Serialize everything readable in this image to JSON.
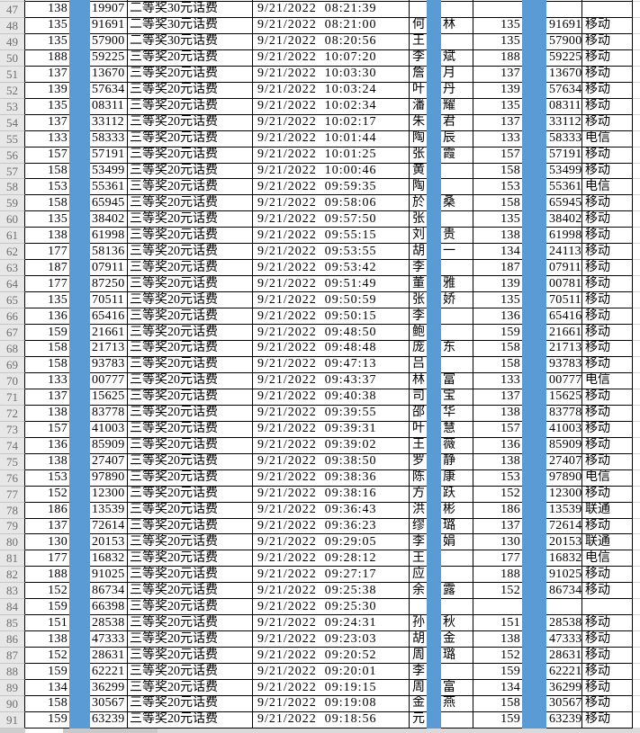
{
  "sheet": {
    "visible_row_range": "47-91",
    "redaction_color": "#5b9bd5",
    "carriers_seen": [
      "移动",
      "电信",
      "联通"
    ],
    "prize_tiers_seen": [
      "二等奖30元话费",
      "三等奖20元话费"
    ]
  },
  "rows": [
    {
      "n": "47",
      "p1": "138",
      "s1": "19907",
      "prize": "二等奖30元话费",
      "dt": "9/21/2022  08:21:39",
      "f": "",
      "l": "",
      "p2": "",
      "s2": "",
      "op": ""
    },
    {
      "n": "48",
      "p1": "135",
      "s1": "91691",
      "prize": "二等奖30元话费",
      "dt": "9/21/2022  08:21:00",
      "f": "何",
      "l": "林",
      "p2": "135",
      "s2": "91691",
      "op": "移动"
    },
    {
      "n": "49",
      "p1": "135",
      "s1": "57900",
      "prize": "二等奖30元话费",
      "dt": "9/21/2022  08:20:56",
      "f": "王",
      "l": "",
      "p2": "135",
      "s2": "57900",
      "op": "移动"
    },
    {
      "n": "50",
      "p1": "188",
      "s1": "59225",
      "prize": "三等奖20元话费",
      "dt": "9/21/2022  10:07:20",
      "f": "李",
      "l": "斌",
      "p2": "188",
      "s2": "59225",
      "op": "移动"
    },
    {
      "n": "51",
      "p1": "137",
      "s1": "13670",
      "prize": "三等奖20元话费",
      "dt": "9/21/2022  10:03:30",
      "f": "詹",
      "l": "月",
      "p2": "137",
      "s2": "13670",
      "op": "移动"
    },
    {
      "n": "52",
      "p1": "139",
      "s1": "57634",
      "prize": "三等奖20元话费",
      "dt": "9/21/2022  10:03:24",
      "f": "叶",
      "l": "丹",
      "p2": "139",
      "s2": "57634",
      "op": "移动"
    },
    {
      "n": "53",
      "p1": "135",
      "s1": "08311",
      "prize": "三等奖20元话费",
      "dt": "9/21/2022  10:02:34",
      "f": "潘",
      "l": "耀",
      "p2": "135",
      "s2": "08311",
      "op": "移动"
    },
    {
      "n": "54",
      "p1": "137",
      "s1": "33112",
      "prize": "三等奖20元话费",
      "dt": "9/21/2022  10:02:17",
      "f": "朱",
      "l": "君",
      "p2": "137",
      "s2": "33112",
      "op": "移动"
    },
    {
      "n": "55",
      "p1": "133",
      "s1": "58333",
      "prize": "三等奖20元话费",
      "dt": "9/21/2022  10:01:44",
      "f": "陶",
      "l": "辰",
      "p2": "133",
      "s2": "58333",
      "op": "电信"
    },
    {
      "n": "56",
      "p1": "157",
      "s1": "57191",
      "prize": "三等奖20元话费",
      "dt": "9/21/2022  10:01:25",
      "f": "张",
      "l": "霞",
      "p2": "157",
      "s2": "57191",
      "op": "移动"
    },
    {
      "n": "57",
      "p1": "158",
      "s1": "53499",
      "prize": "三等奖20元话费",
      "dt": "9/21/2022  10:00:46",
      "f": "黄",
      "l": "",
      "p2": "158",
      "s2": "53499",
      "op": "移动"
    },
    {
      "n": "58",
      "p1": "153",
      "s1": "55361",
      "prize": "三等奖20元话费",
      "dt": "9/21/2022  09:59:35",
      "f": "陶",
      "l": "",
      "p2": "153",
      "s2": "55361",
      "op": "电信"
    },
    {
      "n": "59",
      "p1": "158",
      "s1": "65945",
      "prize": "三等奖20元话费",
      "dt": "9/21/2022  09:58:06",
      "f": "於",
      "l": "桑",
      "p2": "158",
      "s2": "65945",
      "op": "移动"
    },
    {
      "n": "60",
      "p1": "135",
      "s1": "38402",
      "prize": "三等奖20元话费",
      "dt": "9/21/2022  09:57:50",
      "f": "张",
      "l": "",
      "p2": "135",
      "s2": "38402",
      "op": "移动"
    },
    {
      "n": "61",
      "p1": "138",
      "s1": "61998",
      "prize": "三等奖20元话费",
      "dt": "9/21/2022  09:55:15",
      "f": "刘",
      "l": "贵",
      "p2": "138",
      "s2": "61998",
      "op": "移动"
    },
    {
      "n": "62",
      "p1": "177",
      "s1": "58136",
      "prize": "三等奖20元话费",
      "dt": "9/21/2022  09:53:55",
      "f": "胡",
      "l": "一",
      "p2": "134",
      "s2": "24113",
      "op": "移动"
    },
    {
      "n": "63",
      "p1": "187",
      "s1": "07911",
      "prize": "三等奖20元话费",
      "dt": "9/21/2022  09:53:42",
      "f": "李",
      "l": "",
      "p2": "187",
      "s2": "07911",
      "op": "移动"
    },
    {
      "n": "64",
      "p1": "177",
      "s1": "87250",
      "prize": "三等奖20元话费",
      "dt": "9/21/2022  09:51:49",
      "f": "董",
      "l": "雅",
      "p2": "139",
      "s2": "00781",
      "op": "移动"
    },
    {
      "n": "65",
      "p1": "135",
      "s1": "70511",
      "prize": "三等奖20元话费",
      "dt": "9/21/2022  09:50:59",
      "f": "张",
      "l": "娇",
      "p2": "135",
      "s2": "70511",
      "op": "移动"
    },
    {
      "n": "66",
      "p1": "136",
      "s1": "65416",
      "prize": "三等奖20元话费",
      "dt": "9/21/2022  09:50:15",
      "f": "李",
      "l": "",
      "p2": "136",
      "s2": "65416",
      "op": "移动"
    },
    {
      "n": "67",
      "p1": "159",
      "s1": "21661",
      "prize": "三等奖20元话费",
      "dt": "9/21/2022  09:48:50",
      "f": "鲍",
      "l": "",
      "p2": "159",
      "s2": "21661",
      "op": "移动"
    },
    {
      "n": "68",
      "p1": "158",
      "s1": "21713",
      "prize": "三等奖20元话费",
      "dt": "9/21/2022  09:48:48",
      "f": "庞",
      "l": "东",
      "p2": "158",
      "s2": "21713",
      "op": "移动"
    },
    {
      "n": "69",
      "p1": "158",
      "s1": "93783",
      "prize": "三等奖20元话费",
      "dt": "9/21/2022  09:47:13",
      "f": "吕",
      "l": "",
      "p2": "158",
      "s2": "93783",
      "op": "移动"
    },
    {
      "n": "70",
      "p1": "133",
      "s1": "00777",
      "prize": "三等奖20元话费",
      "dt": "9/21/2022  09:43:37",
      "f": "林",
      "l": "富",
      "p2": "133",
      "s2": "00777",
      "op": "电信"
    },
    {
      "n": "71",
      "p1": "137",
      "s1": "15625",
      "prize": "三等奖20元话费",
      "dt": "9/21/2022  09:40:38",
      "f": "司",
      "l": "宝",
      "p2": "137",
      "s2": "15625",
      "op": "移动"
    },
    {
      "n": "72",
      "p1": "138",
      "s1": "83778",
      "prize": "三等奖20元话费",
      "dt": "9/21/2022  09:39:55",
      "f": "邵",
      "l": "华",
      "p2": "138",
      "s2": "83778",
      "op": "移动"
    },
    {
      "n": "73",
      "p1": "157",
      "s1": "41003",
      "prize": "三等奖20元话费",
      "dt": "9/21/2022  09:39:31",
      "f": "叶",
      "l": "慧",
      "p2": "157",
      "s2": "41003",
      "op": "移动"
    },
    {
      "n": "74",
      "p1": "136",
      "s1": "85909",
      "prize": "三等奖20元话费",
      "dt": "9/21/2022  09:39:02",
      "f": "王",
      "l": "薇",
      "p2": "136",
      "s2": "85909",
      "op": "移动"
    },
    {
      "n": "75",
      "p1": "138",
      "s1": "27407",
      "prize": "三等奖20元话费",
      "dt": "9/21/2022  09:38:50",
      "f": "罗",
      "l": "静",
      "p2": "138",
      "s2": "27407",
      "op": "移动"
    },
    {
      "n": "76",
      "p1": "153",
      "s1": "97890",
      "prize": "三等奖20元话费",
      "dt": "9/21/2022  09:38:36",
      "f": "陈",
      "l": "康",
      "p2": "153",
      "s2": "97890",
      "op": "电信"
    },
    {
      "n": "77",
      "p1": "152",
      "s1": "12300",
      "prize": "三等奖20元话费",
      "dt": "9/21/2022  09:38:16",
      "f": "方",
      "l": "跃",
      "p2": "152",
      "s2": "12300",
      "op": "移动"
    },
    {
      "n": "78",
      "p1": "186",
      "s1": "13539",
      "prize": "三等奖20元话费",
      "dt": "9/21/2022  09:36:43",
      "f": "洪",
      "l": "彬",
      "p2": "186",
      "s2": "13539",
      "op": "联通"
    },
    {
      "n": "79",
      "p1": "137",
      "s1": "72614",
      "prize": "三等奖20元话费",
      "dt": "9/21/2022  09:36:23",
      "f": "缪",
      "l": "璐",
      "p2": "137",
      "s2": "72614",
      "op": "移动"
    },
    {
      "n": "80",
      "p1": "130",
      "s1": "20153",
      "prize": "三等奖20元话费",
      "dt": "9/21/2022  09:29:05",
      "f": "李",
      "l": "娟",
      "p2": "130",
      "s2": "20153",
      "op": "联通"
    },
    {
      "n": "81",
      "p1": "177",
      "s1": "16832",
      "prize": "三等奖20元话费",
      "dt": "9/21/2022  09:28:12",
      "f": "王",
      "l": "",
      "p2": "177",
      "s2": "16832",
      "op": "电信"
    },
    {
      "n": "82",
      "p1": "188",
      "s1": "91025",
      "prize": "三等奖20元话费",
      "dt": "9/21/2022  09:27:17",
      "f": "应",
      "l": "",
      "p2": "188",
      "s2": "91025",
      "op": "移动"
    },
    {
      "n": "83",
      "p1": "152",
      "s1": "86734",
      "prize": "三等奖20元话费",
      "dt": "9/21/2022  09:25:38",
      "f": "余",
      "l": "露",
      "p2": "152",
      "s2": "86734",
      "op": "移动"
    },
    {
      "n": "84",
      "p1": "159",
      "s1": "66398",
      "prize": "三等奖20元话费",
      "dt": "9/21/2022  09:25:30",
      "f": "",
      "l": "",
      "p2": "",
      "s2": "",
      "op": ""
    },
    {
      "n": "85",
      "p1": "151",
      "s1": "28538",
      "prize": "三等奖20元话费",
      "dt": "9/21/2022  09:24:31",
      "f": "孙",
      "l": "秋",
      "p2": "151",
      "s2": "28538",
      "op": "移动"
    },
    {
      "n": "86",
      "p1": "138",
      "s1": "47333",
      "prize": "三等奖20元话费",
      "dt": "9/21/2022  09:23:03",
      "f": "胡",
      "l": "金",
      "p2": "138",
      "s2": "47333",
      "op": "移动"
    },
    {
      "n": "87",
      "p1": "152",
      "s1": "28631",
      "prize": "三等奖20元话费",
      "dt": "9/21/2022  09:20:52",
      "f": "周",
      "l": "璐",
      "p2": "152",
      "s2": "28631",
      "op": "移动"
    },
    {
      "n": "88",
      "p1": "159",
      "s1": "62221",
      "prize": "三等奖20元话费",
      "dt": "9/21/2022  09:20:01",
      "f": "李",
      "l": "",
      "p2": "159",
      "s2": "62221",
      "op": "移动"
    },
    {
      "n": "89",
      "p1": "134",
      "s1": "36299",
      "prize": "三等奖20元话费",
      "dt": "9/21/2022  09:19:15",
      "f": "周",
      "l": "富",
      "p2": "134",
      "s2": "36299",
      "op": "移动"
    },
    {
      "n": "90",
      "p1": "158",
      "s1": "30567",
      "prize": "三等奖20元话费",
      "dt": "9/21/2022  09:19:08",
      "f": "金",
      "l": "燕",
      "p2": "158",
      "s2": "30567",
      "op": "移动"
    },
    {
      "n": "91",
      "p1": "159",
      "s1": "63239",
      "prize": "三等奖20元话费",
      "dt": "9/21/2022  09:18:56",
      "f": "元",
      "l": "",
      "p2": "159",
      "s2": "63239",
      "op": "移动"
    }
  ]
}
